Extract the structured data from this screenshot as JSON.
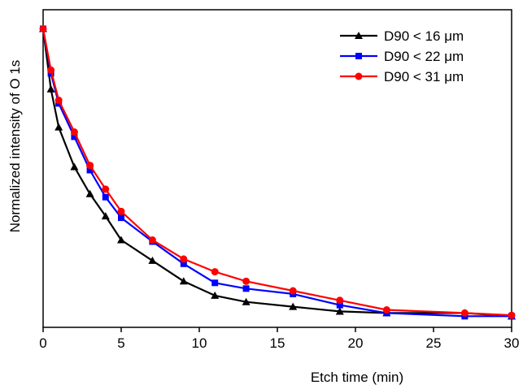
{
  "chart_data": {
    "type": "line",
    "xlabel": "Etch time (min)",
    "ylabel": "Normalized intensity of O 1s",
    "xlim": [
      0,
      30
    ],
    "ylim": [
      0,
      1
    ],
    "x_ticks": [
      0,
      5,
      10,
      15,
      20,
      25,
      30
    ],
    "y_tick_labels_shown": false,
    "grid": false,
    "legend_position": "top-right",
    "series": [
      {
        "name": "D90 < 16 μm",
        "color": "#000000",
        "marker": "triangle",
        "x": [
          0,
          0.5,
          1,
          2,
          3,
          4,
          5,
          7,
          9,
          11,
          13,
          16,
          19,
          22,
          27,
          30
        ],
        "y": [
          0.94,
          0.75,
          0.63,
          0.505,
          0.42,
          0.35,
          0.275,
          0.21,
          0.145,
          0.1,
          0.08,
          0.065,
          0.05,
          0.045,
          0.045,
          0.035
        ]
      },
      {
        "name": "D90 < 22 μm",
        "color": "#0000ff",
        "marker": "square",
        "x": [
          0,
          0.5,
          1,
          2,
          3,
          4,
          5,
          7,
          9,
          11,
          13,
          16,
          19,
          22,
          27,
          30
        ],
        "y": [
          0.94,
          0.8,
          0.705,
          0.6,
          0.495,
          0.41,
          0.345,
          0.27,
          0.2,
          0.14,
          0.122,
          0.105,
          0.07,
          0.045,
          0.035,
          0.035
        ]
      },
      {
        "name": "D90 < 31 μm",
        "color": "#ff0000",
        "marker": "circle",
        "x": [
          0,
          0.5,
          1,
          2,
          3,
          4,
          5,
          7,
          9,
          11,
          13,
          16,
          19,
          22,
          27,
          30
        ],
        "y": [
          0.94,
          0.81,
          0.715,
          0.615,
          0.51,
          0.435,
          0.365,
          0.275,
          0.215,
          0.175,
          0.145,
          0.115,
          0.085,
          0.055,
          0.045,
          0.038
        ]
      }
    ]
  }
}
